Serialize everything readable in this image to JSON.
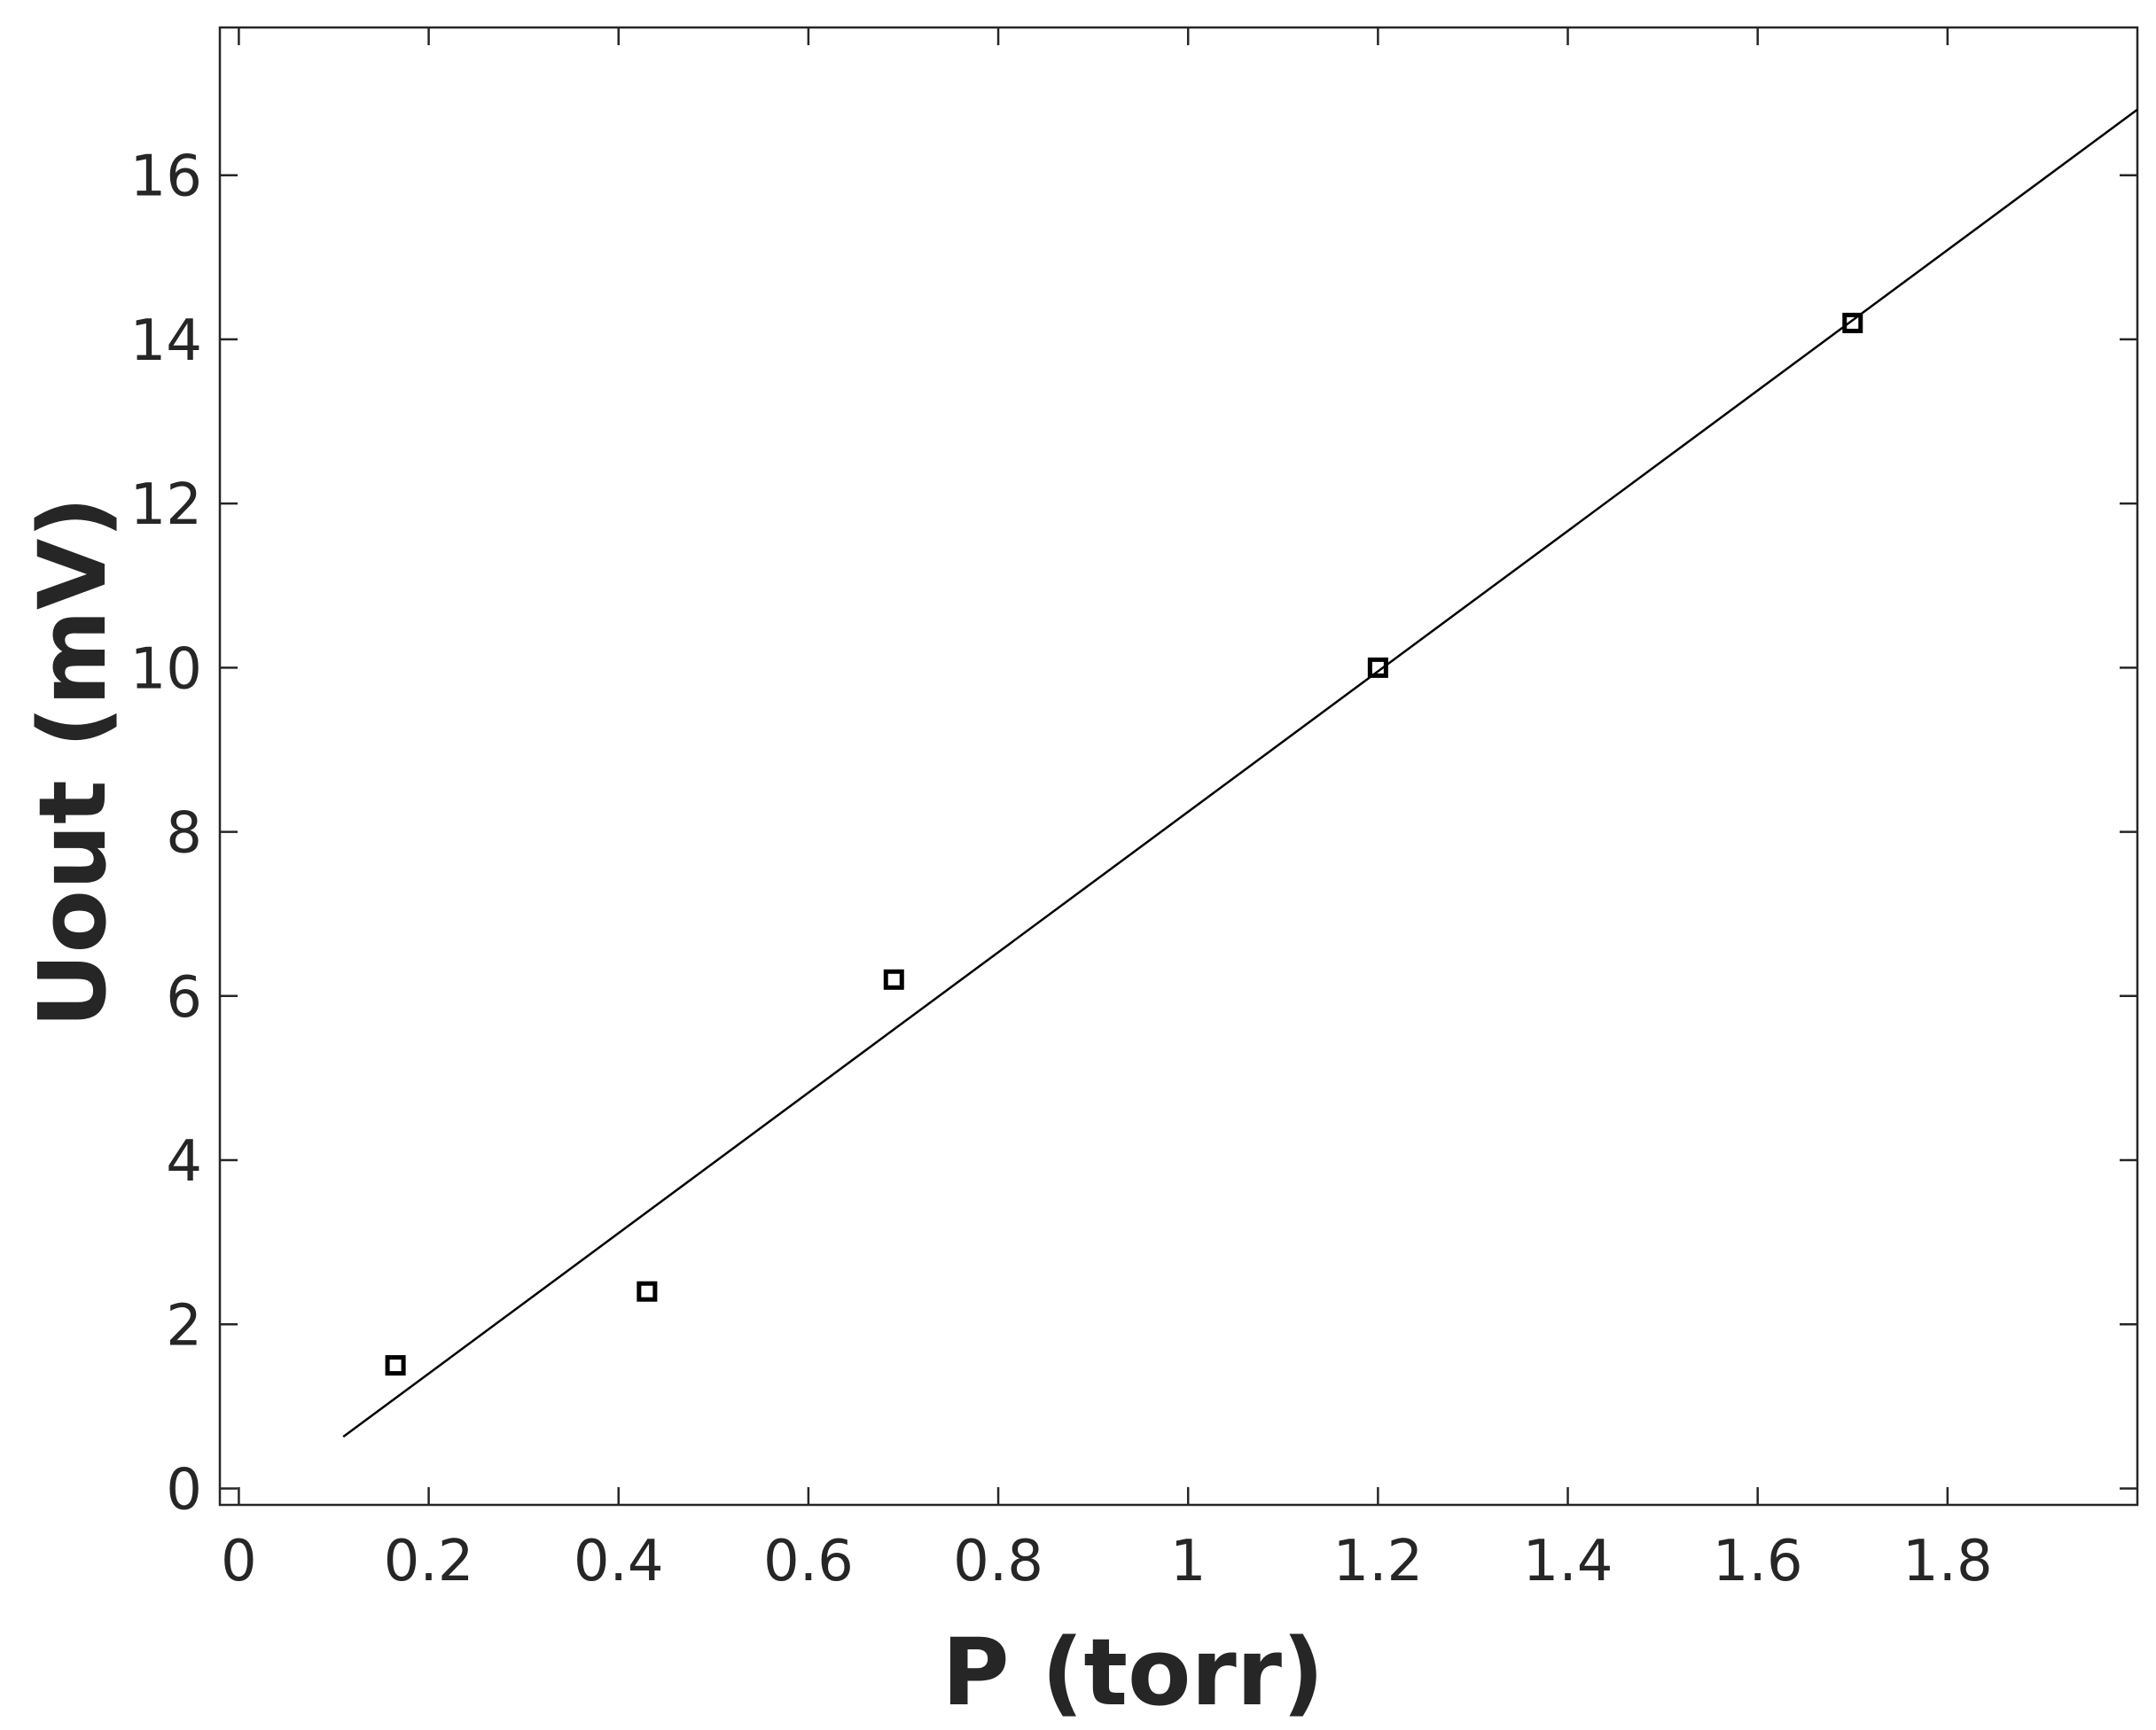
{
  "chart_data": {
    "type": "scatter",
    "title": "",
    "xlabel": "P (torr)",
    "ylabel": "Uout (mV)",
    "xlim": [
      -0.02,
      2.0
    ],
    "ylim": [
      -0.2,
      17.8
    ],
    "xticks": [
      0,
      0.2,
      0.4,
      0.6,
      0.8,
      1,
      1.2,
      1.4,
      1.6,
      1.8
    ],
    "xtick_labels": [
      "0",
      "0.2",
      "0.4",
      "0.6",
      "0.8",
      "1",
      "1.2",
      "1.4",
      "1.6",
      "1.8"
    ],
    "yticks": [
      0,
      2,
      4,
      6,
      8,
      10,
      12,
      14,
      16
    ],
    "ytick_labels": [
      "0",
      "2",
      "4",
      "6",
      "8",
      "10",
      "12",
      "14",
      "16"
    ],
    "grid": false,
    "series": [
      {
        "kind": "markers",
        "marker": "open-square",
        "color": "#000000",
        "x": [
          0.165,
          0.43,
          0.69,
          1.2,
          1.7
        ],
        "y": [
          1.5,
          2.4,
          6.2,
          10.0,
          14.2
        ]
      },
      {
        "kind": "fit-line",
        "color": "#000000",
        "x": [
          0.11,
          2.0
        ],
        "y": [
          0.63,
          16.8
        ]
      }
    ]
  }
}
